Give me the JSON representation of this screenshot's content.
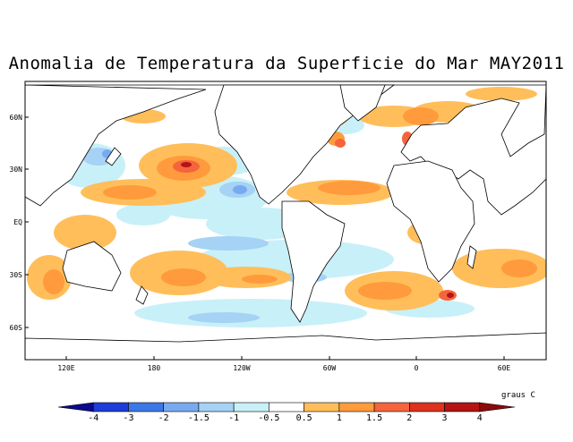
{
  "title": "Anomalia de Temperatura da Superficie do Mar MAY2011",
  "latitude_labels": [
    "60N",
    "30N",
    "EQ",
    "30S",
    "60S"
  ],
  "longitude_labels": [
    "120E",
    "180",
    "120W",
    "60W",
    "0",
    "60E"
  ],
  "colorbar": {
    "units": "graus C",
    "tick_labels": [
      "-4",
      "-3",
      "-2",
      "-1.5",
      "-1",
      "-0.5",
      "0.5",
      "1",
      "1.5",
      "2",
      "3",
      "4"
    ],
    "colors": [
      "#0a0a8a",
      "#1e3cd8",
      "#3c78e6",
      "#78aaf0",
      "#a5d2f5",
      "#c8f0f8",
      "#ffffff",
      "#ffbe5a",
      "#ff9b3c",
      "#f5643c",
      "#dc321e",
      "#b41414",
      "#8c0a0a"
    ]
  },
  "map": {
    "projection": "cylindrical",
    "lon_range": [
      90,
      450
    ],
    "lat_range": [
      -80,
      80
    ],
    "colors": {
      "warm1": "#ffbe5a",
      "warm2": "#ff9b3c",
      "warm3": "#f5643c",
      "warm4": "#dc321e",
      "warm5": "#b41414",
      "cool1": "#c8f0f8",
      "cool2": "#a5d2f5",
      "cool3": "#78aaf0",
      "cool4": "#3c78e6"
    }
  }
}
